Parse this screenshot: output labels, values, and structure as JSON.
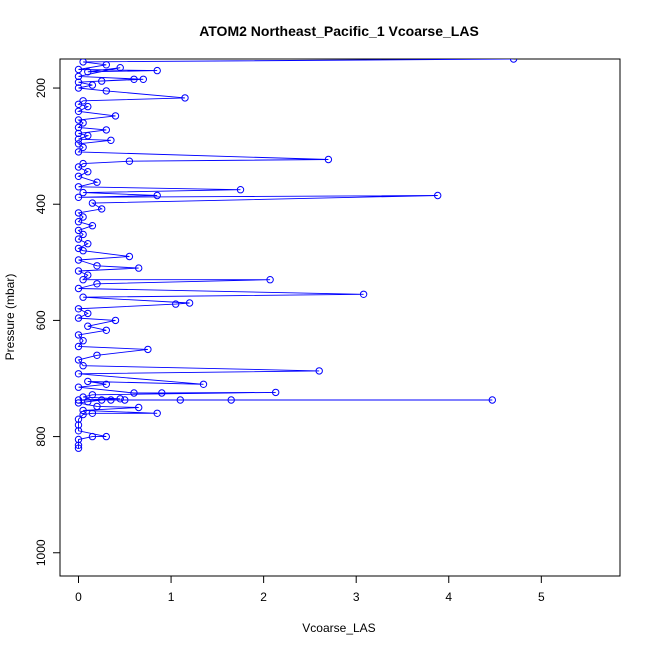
{
  "chart_data": {
    "type": "line",
    "title": "ATOM2 Northeast_Pacific_1 Vcoarse_LAS",
    "xlabel": "Vcoarse_LAS",
    "ylabel": "Pressure (mbar)",
    "xlim": [
      -0.2,
      5.85
    ],
    "ylim": [
      1040,
      150
    ],
    "y_inverted": true,
    "grid": false,
    "legend": "none",
    "x_ticks": [
      0,
      1,
      2,
      3,
      4,
      5
    ],
    "y_ticks": [
      200,
      400,
      600,
      800,
      1000
    ],
    "x_tick_labels": [
      "0",
      "1",
      "2",
      "3",
      "4",
      "5"
    ],
    "y_tick_labels": [
      "200",
      "400",
      "600",
      "800",
      "1000"
    ],
    "series": [
      {
        "color": "#0000ff",
        "marker": "open-circle",
        "points": [
          [
            4.7,
            150
          ],
          [
            0.05,
            155
          ],
          [
            0.3,
            160
          ],
          [
            0.0,
            168
          ],
          [
            0.85,
            170
          ],
          [
            0.1,
            172
          ],
          [
            0.45,
            165
          ],
          [
            0.0,
            180
          ],
          [
            0.7,
            185
          ],
          [
            0.25,
            188
          ],
          [
            0.6,
            185
          ],
          [
            0.0,
            190
          ],
          [
            0.15,
            195
          ],
          [
            0.0,
            200
          ],
          [
            0.3,
            205
          ],
          [
            1.15,
            217
          ],
          [
            0.05,
            222
          ],
          [
            0.0,
            228
          ],
          [
            0.1,
            232
          ],
          [
            0.0,
            240
          ],
          [
            0.4,
            248
          ],
          [
            0.0,
            255
          ],
          [
            0.05,
            260
          ],
          [
            0.0,
            268
          ],
          [
            0.3,
            272
          ],
          [
            0.0,
            278
          ],
          [
            0.1,
            282
          ],
          [
            0.0,
            288
          ],
          [
            0.35,
            290
          ],
          [
            0.0,
            296
          ],
          [
            0.05,
            302
          ],
          [
            0.0,
            310
          ],
          [
            2.7,
            323
          ],
          [
            0.55,
            326
          ],
          [
            0.05,
            330
          ],
          [
            0.0,
            336
          ],
          [
            0.1,
            344
          ],
          [
            0.0,
            352
          ],
          [
            0.2,
            362
          ],
          [
            0.0,
            370
          ],
          [
            1.75,
            375
          ],
          [
            0.05,
            380
          ],
          [
            0.85,
            385
          ],
          [
            0.0,
            388
          ],
          [
            3.88,
            385
          ],
          [
            0.15,
            398
          ],
          [
            0.25,
            408
          ],
          [
            0.0,
            415
          ],
          [
            0.05,
            422
          ],
          [
            0.0,
            430
          ],
          [
            0.15,
            437
          ],
          [
            0.0,
            445
          ],
          [
            0.05,
            452
          ],
          [
            0.0,
            460
          ],
          [
            0.1,
            468
          ],
          [
            0.0,
            476
          ],
          [
            0.05,
            480
          ],
          [
            0.55,
            490
          ],
          [
            0.0,
            496
          ],
          [
            0.2,
            506
          ],
          [
            0.65,
            510
          ],
          [
            0.0,
            515
          ],
          [
            0.1,
            522
          ],
          [
            0.05,
            530
          ],
          [
            2.07,
            530
          ],
          [
            0.2,
            537
          ],
          [
            0.0,
            545
          ],
          [
            3.08,
            555
          ],
          [
            0.05,
            560
          ],
          [
            1.2,
            570
          ],
          [
            1.05,
            572
          ],
          [
            0.0,
            580
          ],
          [
            0.1,
            588
          ],
          [
            0.0,
            596
          ],
          [
            0.4,
            600
          ],
          [
            0.1,
            610
          ],
          [
            0.3,
            617
          ],
          [
            0.0,
            625
          ],
          [
            0.05,
            635
          ],
          [
            0.0,
            645
          ],
          [
            0.75,
            650
          ],
          [
            0.2,
            660
          ],
          [
            0.0,
            668
          ],
          [
            0.05,
            678
          ],
          [
            2.6,
            687
          ],
          [
            0.0,
            692
          ],
          [
            1.35,
            710
          ],
          [
            0.1,
            705
          ],
          [
            0.3,
            710
          ],
          [
            0.0,
            715
          ],
          [
            0.6,
            725
          ],
          [
            0.9,
            725
          ],
          [
            2.13,
            724
          ],
          [
            0.15,
            728
          ],
          [
            0.05,
            732
          ],
          [
            0.45,
            735
          ],
          [
            0.0,
            737
          ],
          [
            4.47,
            737
          ],
          [
            1.65,
            737
          ],
          [
            1.1,
            737
          ],
          [
            0.5,
            737
          ],
          [
            0.35,
            737
          ],
          [
            0.25,
            737
          ],
          [
            0.1,
            740
          ],
          [
            0.0,
            742
          ],
          [
            0.2,
            748
          ],
          [
            0.65,
            750
          ],
          [
            0.05,
            755
          ],
          [
            0.85,
            760
          ],
          [
            0.15,
            760
          ],
          [
            0.05,
            762
          ],
          [
            0.0,
            770
          ],
          [
            0.0,
            780
          ],
          [
            0.0,
            790
          ],
          [
            0.3,
            800
          ],
          [
            0.15,
            800
          ],
          [
            0.0,
            805
          ],
          [
            0.0,
            815
          ],
          [
            0.0,
            820
          ]
        ]
      }
    ]
  }
}
